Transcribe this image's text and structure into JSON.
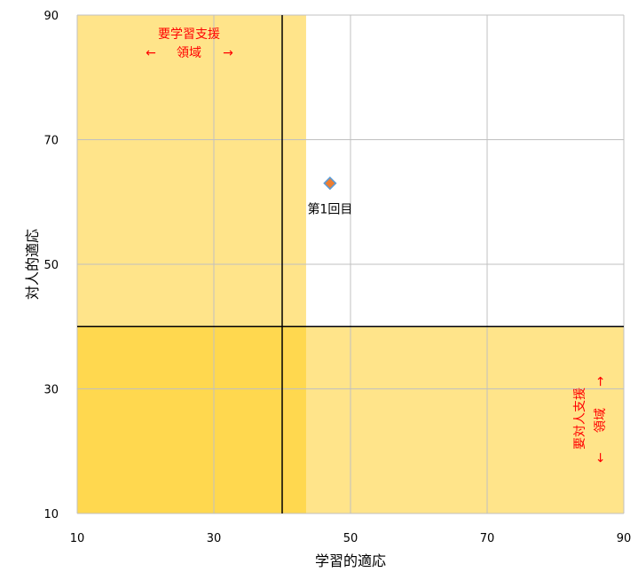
{
  "chart_data": {
    "type": "scatter",
    "xlabel": "学習的適応",
    "ylabel": "対人的適応",
    "xlim": [
      10,
      90
    ],
    "ylim": [
      10,
      90
    ],
    "x_ticks": [
      "10",
      "30",
      "50",
      "70",
      "90"
    ],
    "y_ticks": [
      "10",
      "30",
      "50",
      "70",
      "90"
    ],
    "grid": true,
    "reference_lines": {
      "x": 40,
      "y": 40
    },
    "series": [
      {
        "points": [
          {
            "x": 47,
            "y": 63,
            "label": "第1回目"
          }
        ]
      }
    ],
    "zones": {
      "learning_support": {
        "x_range": [
          10,
          43.5
        ],
        "y_range": [
          10,
          90
        ],
        "title": "要学習支援",
        "left_arrow": "←",
        "sub": "領域",
        "right_arrow": "→"
      },
      "interpersonal_support": {
        "x_range": [
          10,
          90
        ],
        "y_range": [
          10,
          40
        ],
        "title": "要対人支援",
        "up_arrow": "→",
        "sub": "領域",
        "down_arrow": "←"
      }
    },
    "colors": {
      "zone": "#ffe48a",
      "overlap": "#ffd84f",
      "grid": "#c0c0c0",
      "reference": "#000000",
      "marker_fill": "#ed7d31",
      "marker_stroke": "#5b9bd5",
      "zone_text": "#ff0000"
    }
  }
}
